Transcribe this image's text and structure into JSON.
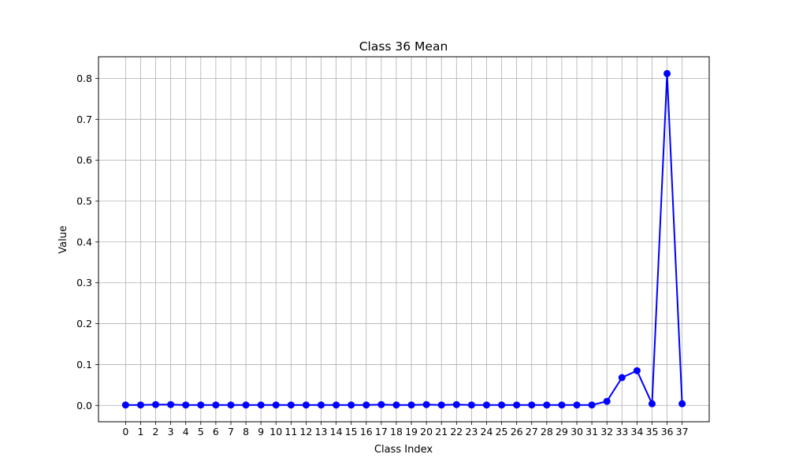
{
  "chart_data": {
    "type": "line",
    "title": "Class 36 Mean",
    "xlabel": "Class Index",
    "ylabel": "Value",
    "x": [
      0,
      1,
      2,
      3,
      4,
      5,
      6,
      7,
      8,
      9,
      10,
      11,
      12,
      13,
      14,
      15,
      16,
      17,
      18,
      19,
      20,
      21,
      22,
      23,
      24,
      25,
      26,
      27,
      28,
      29,
      30,
      31,
      32,
      33,
      34,
      35,
      36,
      37
    ],
    "series": [
      {
        "values": [
          0.001,
          0.001,
          0.002,
          0.002,
          0.001,
          0.001,
          0.001,
          0.001,
          0.001,
          0.001,
          0.001,
          0.001,
          0.001,
          0.001,
          0.001,
          0.001,
          0.001,
          0.002,
          0.001,
          0.001,
          0.002,
          0.001,
          0.002,
          0.001,
          0.001,
          0.001,
          0.001,
          0.001,
          0.001,
          0.001,
          0.001,
          0.001,
          0.01,
          0.068,
          0.085,
          0.004,
          0.812,
          0.004
        ],
        "color": "#0000ff"
      }
    ],
    "xlim": [
      -1.8,
      38.8
    ],
    "ylim": [
      -0.04,
      0.853
    ],
    "yticks": [
      "0.0",
      "0.1",
      "0.2",
      "0.3",
      "0.4",
      "0.5",
      "0.6",
      "0.7",
      "0.8"
    ],
    "grid": true,
    "legend": "none"
  }
}
